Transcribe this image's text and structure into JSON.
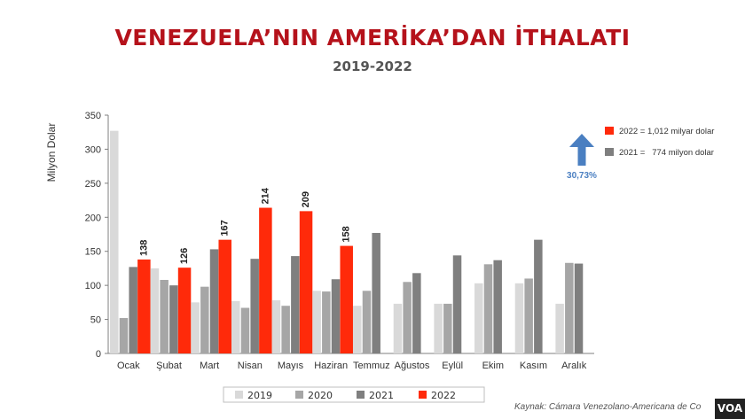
{
  "header": {
    "title": "VENEZUELA’NIN AMERİKA’DAN İTHALATI",
    "subtitle": "2019-2022"
  },
  "annotation": {
    "legend_2022": "2022 = 1,012 milyar dolar",
    "legend_2021": "2021 =   774 milyon dolar",
    "growth": "30,73%",
    "growth_icon": "arrow-up-icon",
    "growth_color": "#4a7fc1"
  },
  "footer": {
    "source": "Kaynak: Cámara Venezolano-Americana de Co",
    "logo": "VOA"
  },
  "chart_data": {
    "type": "bar",
    "title": "VENEZUELA’NIN AMERİKA’DAN İTHALATI",
    "subtitle": "2019-2022",
    "ylabel": "Milyon Dolar",
    "xlabel": "",
    "ylim": [
      0,
      350
    ],
    "yticks": [
      0,
      50,
      100,
      150,
      200,
      250,
      300,
      350
    ],
    "grid": false,
    "legend_position": "bottom",
    "categories": [
      "Ocak",
      "Şubat",
      "Mart",
      "Nisan",
      "Mayıs",
      "Haziran",
      "Temmuz",
      "Ağustos",
      "Eylül",
      "Ekim",
      "Kasım",
      "Aralık"
    ],
    "series": [
      {
        "name": "2019",
        "color": "#d9d9d9",
        "values": [
          327,
          125,
          75,
          77,
          78,
          92,
          70,
          73,
          73,
          103,
          103,
          73
        ]
      },
      {
        "name": "2020",
        "color": "#a6a6a6",
        "values": [
          52,
          108,
          98,
          67,
          70,
          91,
          92,
          105,
          73,
          131,
          110,
          133
        ]
      },
      {
        "name": "2021",
        "color": "#7f7f7f",
        "values": [
          127,
          100,
          153,
          139,
          143,
          109,
          177,
          118,
          144,
          137,
          167,
          132
        ]
      },
      {
        "name": "2022",
        "color": "#ff2a0a",
        "values": [
          138,
          126,
          167,
          214,
          209,
          158,
          null,
          null,
          null,
          null,
          null,
          null
        ],
        "labels": [
          "138",
          "126",
          "167",
          "214",
          "209",
          "158",
          "",
          "",
          "",
          "",
          "",
          ""
        ]
      }
    ]
  }
}
